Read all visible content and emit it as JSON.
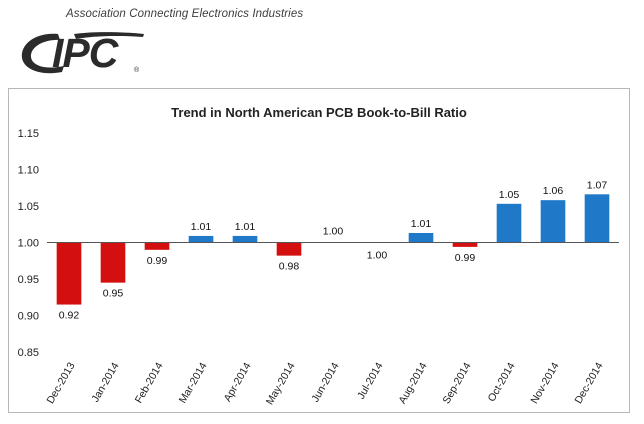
{
  "header": {
    "tagline": "Association Connecting Electronics Industries",
    "logo_text": "IPC",
    "logo_registered": "®"
  },
  "colors": {
    "negative": "#d40f0f",
    "positive": "#1f78c8",
    "baseline": "#555555"
  },
  "chart_data": {
    "type": "bar",
    "title": "Trend in North American PCB Book-to-Bill Ratio",
    "xlabel": "",
    "ylabel": "",
    "baseline": 1.0,
    "ylim": [
      0.85,
      1.15
    ],
    "yticks": [
      "0.85",
      "0.90",
      "0.95",
      "1.00",
      "1.05",
      "1.10",
      "1.15"
    ],
    "categories": [
      "Dec-2013",
      "Jan-2014",
      "Feb-2014",
      "Mar-2014",
      "Apr-2014",
      "May-2014",
      "Jun-2014",
      "Jul-2014",
      "Aug-2014",
      "Sep-2014",
      "Oct-2014",
      "Nov-2014",
      "Dec-2014"
    ],
    "values": [
      0.915,
      0.945,
      0.99,
      1.009,
      1.009,
      0.982,
      1.0,
      1.0,
      1.013,
      0.994,
      1.053,
      1.058,
      1.066
    ],
    "labels": [
      "0.92",
      "0.95",
      "0.99",
      "1.01",
      "1.01",
      "0.98",
      "1.00",
      "1.00",
      "1.01",
      "0.99",
      "1.05",
      "1.06",
      "1.07"
    ],
    "grid": false,
    "legend": "none"
  }
}
